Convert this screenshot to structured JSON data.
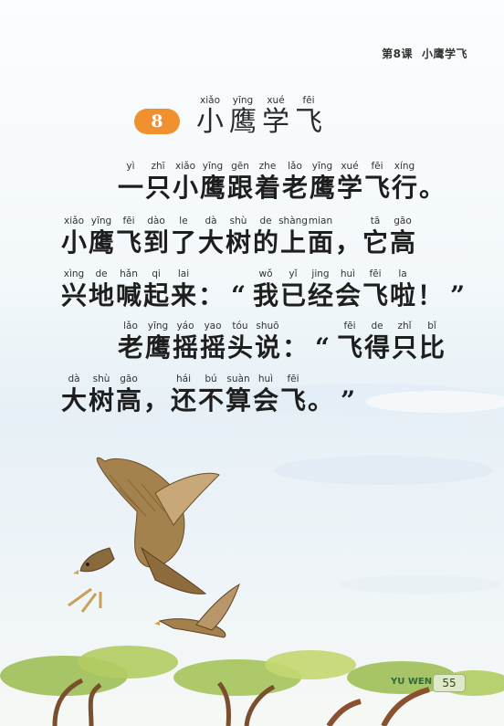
{
  "header": {
    "lesson": "第8课",
    "title": "小鹰学飞"
  },
  "lesson_number": "8",
  "title_chars": [
    {
      "py": "xiǎo",
      "hz": "小"
    },
    {
      "py": "yīng",
      "hz": "鹰"
    },
    {
      "py": "xué",
      "hz": "学"
    },
    {
      "py": "fēi",
      "hz": "飞"
    }
  ],
  "lines": [
    [
      {
        "py": "yì",
        "hz": "一"
      },
      {
        "py": "zhī",
        "hz": "只"
      },
      {
        "py": "xiǎo",
        "hz": "小"
      },
      {
        "py": "yīng",
        "hz": "鹰"
      },
      {
        "py": "gēn",
        "hz": "跟"
      },
      {
        "py": "zhe",
        "hz": "着"
      },
      {
        "py": "lǎo",
        "hz": "老"
      },
      {
        "py": "yīng",
        "hz": "鹰"
      },
      {
        "py": "xué",
        "hz": "学"
      },
      {
        "py": "fēi",
        "hz": "飞"
      },
      {
        "py": "xíng",
        "hz": "行"
      },
      {
        "py": "",
        "hz": "。"
      }
    ],
    [
      {
        "py": "xiǎo",
        "hz": "小"
      },
      {
        "py": "yīng",
        "hz": "鹰"
      },
      {
        "py": "fēi",
        "hz": "飞"
      },
      {
        "py": "dào",
        "hz": "到"
      },
      {
        "py": "le",
        "hz": "了"
      },
      {
        "py": "dà",
        "hz": "大"
      },
      {
        "py": "shù",
        "hz": "树"
      },
      {
        "py": "de",
        "hz": "的"
      },
      {
        "py": "shàng",
        "hz": "上"
      },
      {
        "py": "mian",
        "hz": "面"
      },
      {
        "py": "",
        "hz": "，"
      },
      {
        "py": "tā",
        "hz": "它"
      },
      {
        "py": "gāo",
        "hz": "高"
      }
    ],
    [
      {
        "py": "xìng",
        "hz": "兴"
      },
      {
        "py": "de",
        "hz": "地"
      },
      {
        "py": "hǎn",
        "hz": "喊"
      },
      {
        "py": "qi",
        "hz": "起"
      },
      {
        "py": "lai",
        "hz": "来"
      },
      {
        "py": "",
        "hz": "："
      },
      {
        "py": "",
        "hz": "“"
      },
      {
        "py": "wǒ",
        "hz": "我"
      },
      {
        "py": "yǐ",
        "hz": "已"
      },
      {
        "py": "jing",
        "hz": "经"
      },
      {
        "py": "huì",
        "hz": "会"
      },
      {
        "py": "fēi",
        "hz": "飞"
      },
      {
        "py": "la",
        "hz": "啦"
      },
      {
        "py": "",
        "hz": "！"
      },
      {
        "py": "",
        "hz": "”"
      }
    ],
    [
      {
        "py": "lǎo",
        "hz": "老"
      },
      {
        "py": "yīng",
        "hz": "鹰"
      },
      {
        "py": "yáo",
        "hz": "摇"
      },
      {
        "py": "yao",
        "hz": "摇"
      },
      {
        "py": "tóu",
        "hz": "头"
      },
      {
        "py": "shuō",
        "hz": "说"
      },
      {
        "py": "",
        "hz": "："
      },
      {
        "py": "",
        "hz": "“"
      },
      {
        "py": "fēi",
        "hz": "飞"
      },
      {
        "py": "de",
        "hz": "得"
      },
      {
        "py": "zhǐ",
        "hz": "只"
      },
      {
        "py": "bǐ",
        "hz": "比"
      }
    ],
    [
      {
        "py": "dà",
        "hz": "大"
      },
      {
        "py": "shù",
        "hz": "树"
      },
      {
        "py": "gāo",
        "hz": "高"
      },
      {
        "py": "",
        "hz": "，"
      },
      {
        "py": "hái",
        "hz": "还"
      },
      {
        "py": "bú",
        "hz": "不"
      },
      {
        "py": "suàn",
        "hz": "算"
      },
      {
        "py": "huì",
        "hz": "会"
      },
      {
        "py": "fēi",
        "hz": "飞"
      },
      {
        "py": "",
        "hz": "。"
      },
      {
        "py": "",
        "hz": "”"
      }
    ]
  ],
  "footer": {
    "subject": "YU WEN",
    "page": "55"
  }
}
